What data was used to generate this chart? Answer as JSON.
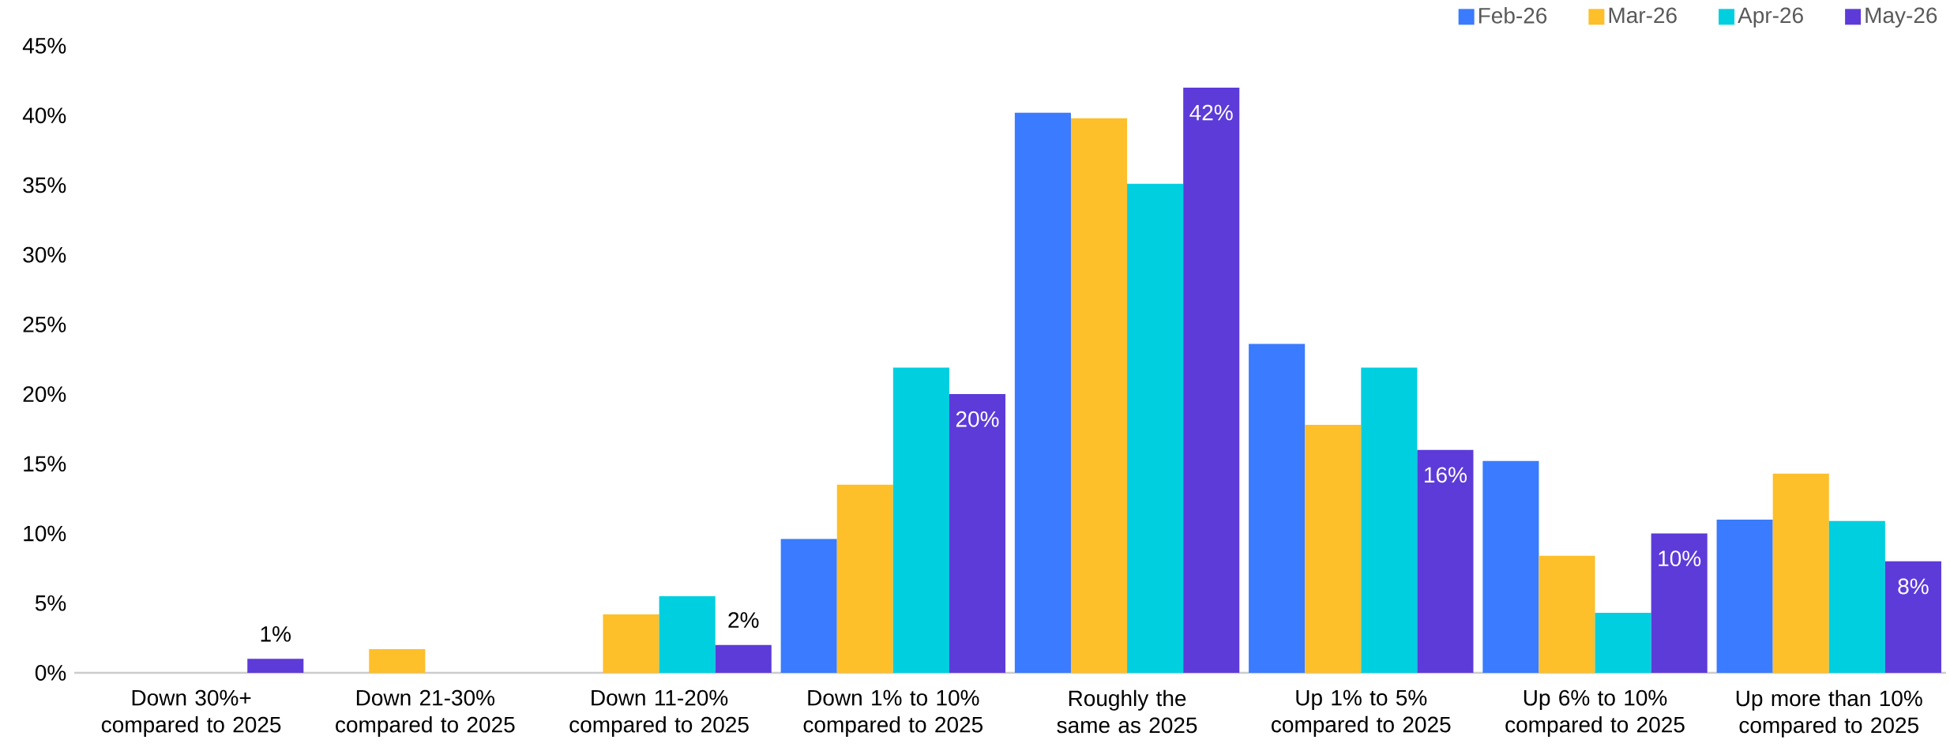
{
  "chart_data": {
    "type": "bar",
    "categories": [
      "Down 30%+ compared to 2025",
      "Down 21-30% compared to 2025",
      "Down 11-20% compared to 2025",
      "Down 1% to 10% compared to 2025",
      "Roughly the same as 2025",
      "Up 1% to 5% compared to 2025",
      "Up 6% to 10% compared to 2025",
      "Up more than 10% compared to 2025"
    ],
    "series": [
      {
        "name": "Feb-26",
        "color": "#3a7bff",
        "values": [
          0,
          0,
          0,
          9.6,
          40.2,
          23.6,
          15.2,
          11.0
        ]
      },
      {
        "name": "Mar-26",
        "color": "#fdbf2a",
        "values": [
          0,
          1.7,
          4.2,
          13.5,
          39.8,
          17.8,
          8.4,
          14.3
        ]
      },
      {
        "name": "Apr-26",
        "color": "#00cfdf",
        "values": [
          0,
          0,
          5.5,
          21.9,
          35.1,
          21.9,
          4.3,
          10.9
        ]
      },
      {
        "name": "May-26",
        "color": "#5d3bd9",
        "values": [
          1,
          0,
          2,
          20,
          42,
          16,
          10,
          8
        ],
        "value_labels": [
          "1%",
          null,
          "2%",
          "20%",
          "42%",
          "16%",
          "10%",
          "8%"
        ]
      }
    ],
    "ylim": [
      0,
      45
    ],
    "yticks": [
      {
        "value": 0,
        "label": "0%"
      },
      {
        "value": 5,
        "label": "5%"
      },
      {
        "value": 10,
        "label": "10%"
      },
      {
        "value": 15,
        "label": "15%"
      },
      {
        "value": 20,
        "label": "20%"
      },
      {
        "value": 25,
        "label": "25%"
      },
      {
        "value": 30,
        "label": "30%"
      },
      {
        "value": 35,
        "label": "35%"
      },
      {
        "value": 40,
        "label": "40%"
      },
      {
        "value": 45,
        "label": "45%"
      }
    ],
    "grid": false,
    "legend": "top right"
  }
}
